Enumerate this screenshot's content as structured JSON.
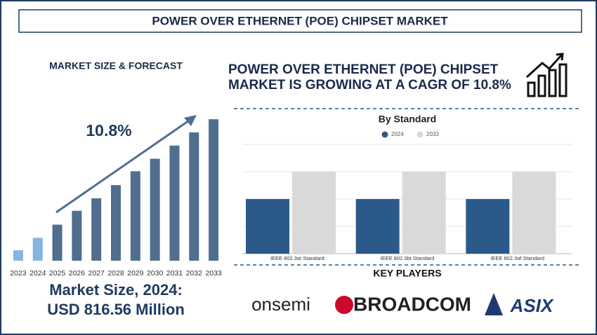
{
  "header": {
    "title": "POWER OVER ETHERNET (POE) CHIPSET MARKET"
  },
  "chart_data": [
    {
      "type": "bar",
      "title": "MARKET SIZE & FORECAST",
      "annotation": "10.8%",
      "categories": [
        "2023",
        "2024",
        "2025",
        "2026",
        "2027",
        "2028",
        "2029",
        "2030",
        "2031",
        "2032",
        "2033"
      ],
      "values": [
        371,
        816.56,
        1286,
        1781,
        2227,
        2697,
        3192,
        3637,
        4107,
        4577,
        5047
      ],
      "colors": [
        "#86b4e0",
        "#86b4e0",
        "#4f6e90",
        "#4f6e90",
        "#4f6e90",
        "#4f6e90",
        "#4f6e90",
        "#4f6e90",
        "#4f6e90",
        "#4f6e90",
        "#4f6e90"
      ],
      "ylim": [
        0,
        5300
      ],
      "footer": [
        "Market Size, 2024:",
        "USD 816.56 Million"
      ]
    },
    {
      "type": "grouped-bar",
      "title": "By Standard",
      "categories": [
        "IEEE 802.3at Standard",
        "IEEE 802.3bt Standard",
        "IEEE 802.3af Standard"
      ],
      "series": [
        {
          "name": "2024",
          "color": "#2b5a8a",
          "values": [
            2,
            2,
            2
          ]
        },
        {
          "name": "2033",
          "color": "#d9d9d9",
          "values": [
            3,
            3,
            3
          ]
        }
      ],
      "ylim": [
        0,
        4
      ],
      "legend": "top"
    }
  ],
  "headline": [
    "POWER OVER ETHERNET (POE) CHIPSET",
    "MARKET IS GROWING AT A CAGR OF 10.8%"
  ],
  "key_players": {
    "title": "KEY PLAYERS",
    "names": [
      "onsemi",
      "BROADCOM",
      "ASIX"
    ]
  }
}
